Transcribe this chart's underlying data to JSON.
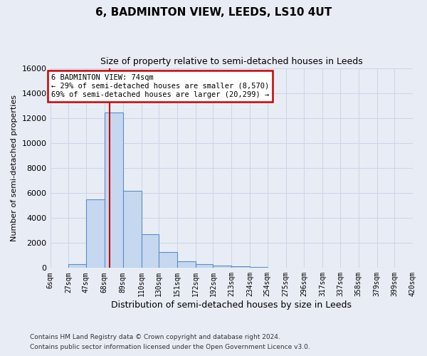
{
  "title": "6, BADMINTON VIEW, LEEDS, LS10 4UT",
  "subtitle": "Size of property relative to semi-detached houses in Leeds",
  "xlabel": "Distribution of semi-detached houses by size in Leeds",
  "ylabel": "Number of semi-detached properties",
  "bar_values": [
    0,
    300,
    5500,
    12450,
    6200,
    2700,
    1300,
    550,
    300,
    200,
    150,
    100,
    0,
    0,
    0,
    0,
    0,
    0,
    0,
    0
  ],
  "bin_edges": [
    6,
    27,
    47,
    68,
    89,
    110,
    130,
    151,
    172,
    192,
    213,
    234,
    254,
    275,
    296,
    317,
    337,
    358,
    379,
    399,
    420
  ],
  "tick_labels": [
    "6sqm",
    "27sqm",
    "47sqm",
    "68sqm",
    "89sqm",
    "110sqm",
    "130sqm",
    "151sqm",
    "172sqm",
    "192sqm",
    "213sqm",
    "234sqm",
    "254sqm",
    "275sqm",
    "296sqm",
    "317sqm",
    "337sqm",
    "358sqm",
    "379sqm",
    "399sqm",
    "420sqm"
  ],
  "bar_color": "#c5d8f0",
  "bar_edge_color": "#5b8dc8",
  "grid_color": "#cdd6e8",
  "background_color": "#e8edf5",
  "ylim": [
    0,
    16000
  ],
  "yticks": [
    0,
    2000,
    4000,
    6000,
    8000,
    10000,
    12000,
    14000,
    16000
  ],
  "red_line_x": 74,
  "annotation_line1": "6 BADMINTON VIEW: 74sqm",
  "annotation_line2": "← 29% of semi-detached houses are smaller (8,570)",
  "annotation_line3": "69% of semi-detached houses are larger (20,299) →",
  "annotation_box_color": "#ffffff",
  "annotation_border_color": "#cc0000",
  "footnote1": "Contains HM Land Registry data © Crown copyright and database right 2024.",
  "footnote2": "Contains public sector information licensed under the Open Government Licence v3.0."
}
